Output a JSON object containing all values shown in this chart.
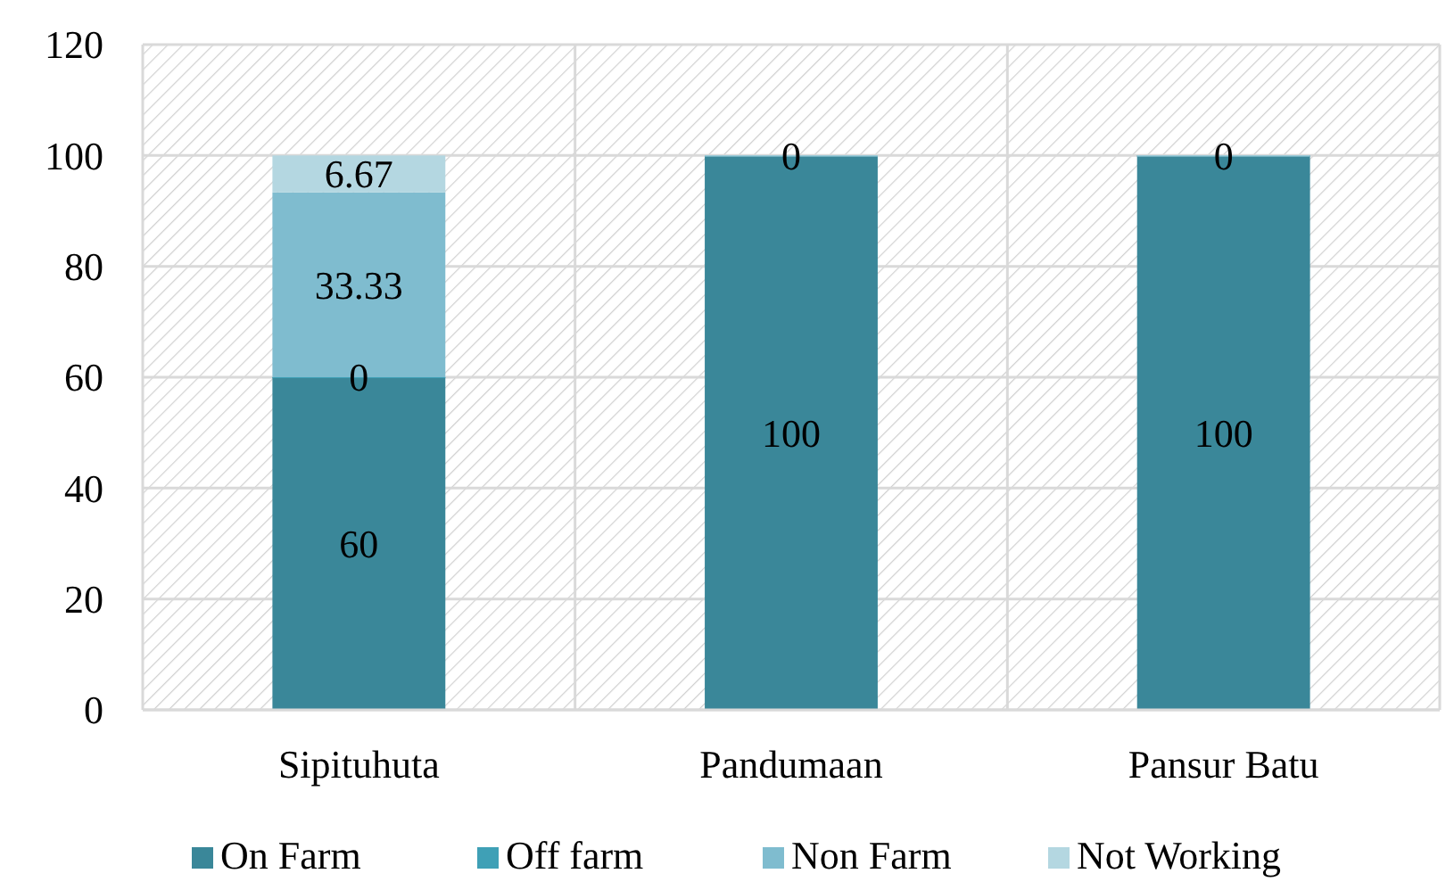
{
  "chart_data": {
    "type": "bar",
    "stacked": true,
    "categories": [
      "Sipituhuta",
      "Pandumaan",
      "Pansur Batu"
    ],
    "series": [
      {
        "name": "On Farm",
        "color": "#3a8799",
        "values": [
          60,
          100,
          100
        ],
        "value_labels": [
          "60",
          "100",
          "100"
        ]
      },
      {
        "name": "Off farm",
        "color": "#3fa0b6",
        "values": [
          0,
          0,
          0
        ],
        "value_labels": [
          "0",
          "0",
          "0"
        ]
      },
      {
        "name": "Non Farm",
        "color": "#7fbccf",
        "values": [
          33.33,
          0,
          0
        ],
        "value_labels": [
          "33.33",
          null,
          null
        ]
      },
      {
        "name": "Not Working",
        "color": "#b4d7e1",
        "values": [
          6.67,
          0,
          0
        ],
        "value_labels": [
          "6.67",
          null,
          null
        ]
      }
    ],
    "ylim": [
      0,
      120
    ],
    "yticks": [
      0,
      20,
      40,
      60,
      80,
      100,
      120
    ],
    "grid": true,
    "legend": "bottom"
  }
}
